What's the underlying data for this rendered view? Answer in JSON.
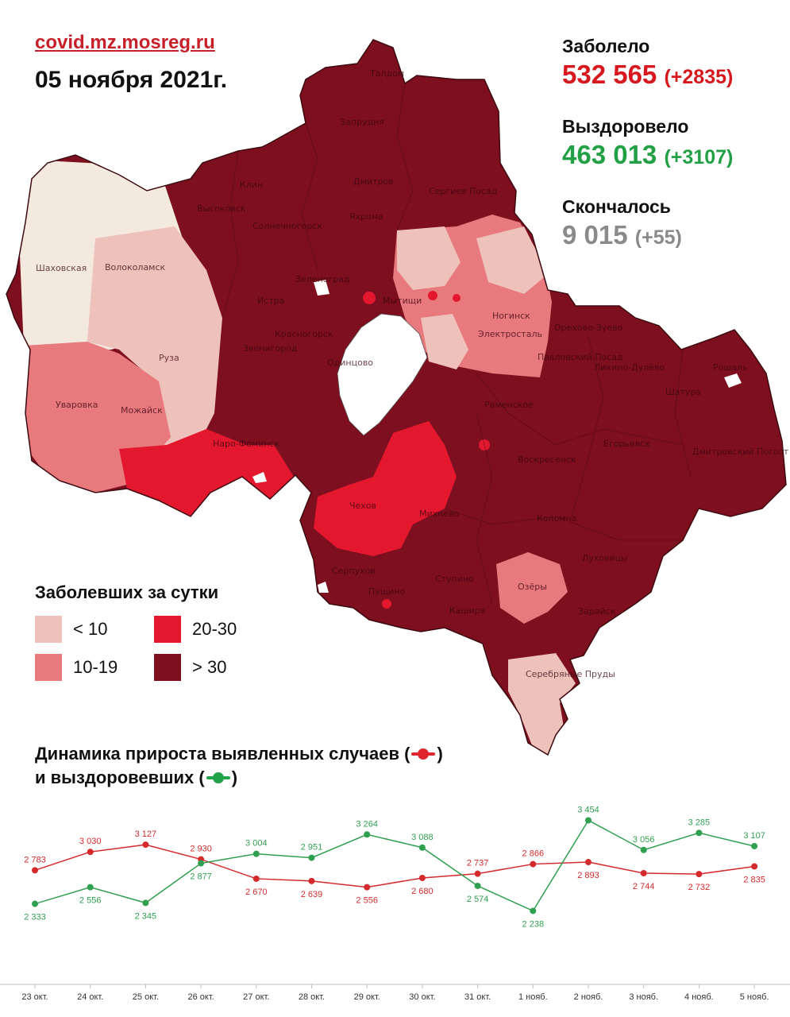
{
  "header": {
    "source": "covid.mz.mosreg.ru",
    "date": "05 ноября 2021г."
  },
  "stats": {
    "sick": {
      "label": "Заболело",
      "value": "532 565",
      "delta": "(+2835)",
      "color": "#d7191f"
    },
    "recovered": {
      "label": "Выздоровело",
      "value": "463 013",
      "delta": "(+3107)",
      "color": "#22a046"
    },
    "deceased": {
      "label": "Скончалось",
      "value": "9 015",
      "delta": "(+55)",
      "color": "#8a8a8a"
    }
  },
  "legend": {
    "title": "Заболевших за сутки",
    "items": [
      {
        "label": "< 10",
        "color": "#efc1bb"
      },
      {
        "label": "20-30",
        "color": "#e3172e"
      },
      {
        "label": "10-19",
        "color": "#e8797c"
      },
      {
        "label": "> 30",
        "color": "#7e0f1e"
      }
    ]
  },
  "map": {
    "cities": [
      "Дмитров",
      "Талдом",
      "Запрудня",
      "Клин",
      "Высоковск",
      "Сергиев Посад",
      "Яхрома",
      "Солнечногорск",
      "Шаховская",
      "Волоколамск",
      "Зеленоград",
      "Истра",
      "Мытищи",
      "Красногорск",
      "Ногинск",
      "Электросталь",
      "Орехово-Зуево",
      "Рошаль",
      "Ликино-Дулёво",
      "Павловский Посад",
      "Руза",
      "Звенигород",
      "Одинцово",
      "Уваровка",
      "Можайск",
      "Наро-Фоминск",
      "Раменское",
      "Шатура",
      "Егорьевск",
      "Воскресенск",
      "Дмитровский Погост",
      "Чехов",
      "Михнево",
      "Коломна",
      "Луховицы",
      "Серпухов",
      "Пущино",
      "Ступино",
      "Озёры",
      "Зарайск",
      "Кашира",
      "Серебряные Пруды"
    ]
  },
  "dynamics": {
    "title_line1": "Динамика прироста выявленных случаев (",
    "title_line2": "и выздоровевших (",
    "title_close": ")"
  },
  "chart_data": {
    "type": "line",
    "categories": [
      "23 окт.",
      "24 окт.",
      "25 окт.",
      "26 окт.",
      "27 окт.",
      "28 окт.",
      "29 окт.",
      "30 окт.",
      "31 окт.",
      "1 нояб.",
      "2 нояб.",
      "3 нояб.",
      "4 нояб.",
      "5 нояб."
    ],
    "series": [
      {
        "color": "#d42a2c",
        "values": [
          2783,
          3030,
          3127,
          2930,
          2670,
          2639,
          2556,
          2680,
          2737,
          2866,
          2893,
          2744,
          2732,
          2835
        ],
        "labels": [
          "2 783",
          "3 030",
          "3 127",
          "2 930",
          "2 670",
          "2 639",
          "2 556",
          "2 680",
          "2 737",
          "2 866",
          "2 893",
          "2 744",
          "2 732",
          "2 835"
        ]
      },
      {
        "color": "#2f9f50",
        "values": [
          2333,
          2556,
          2345,
          2877,
          3004,
          2951,
          3264,
          3088,
          2574,
          2238,
          3454,
          3056,
          3285,
          3107
        ],
        "labels": [
          "2 333",
          "2 556",
          "2 345",
          "2 877",
          "3 004",
          "2 951",
          "3 264",
          "3 088",
          "2 574",
          "2 238",
          "3 454",
          "3 056",
          "3 285",
          "3 107"
        ]
      }
    ],
    "title": "",
    "xlabel": "",
    "ylabel": "",
    "grid": false
  }
}
